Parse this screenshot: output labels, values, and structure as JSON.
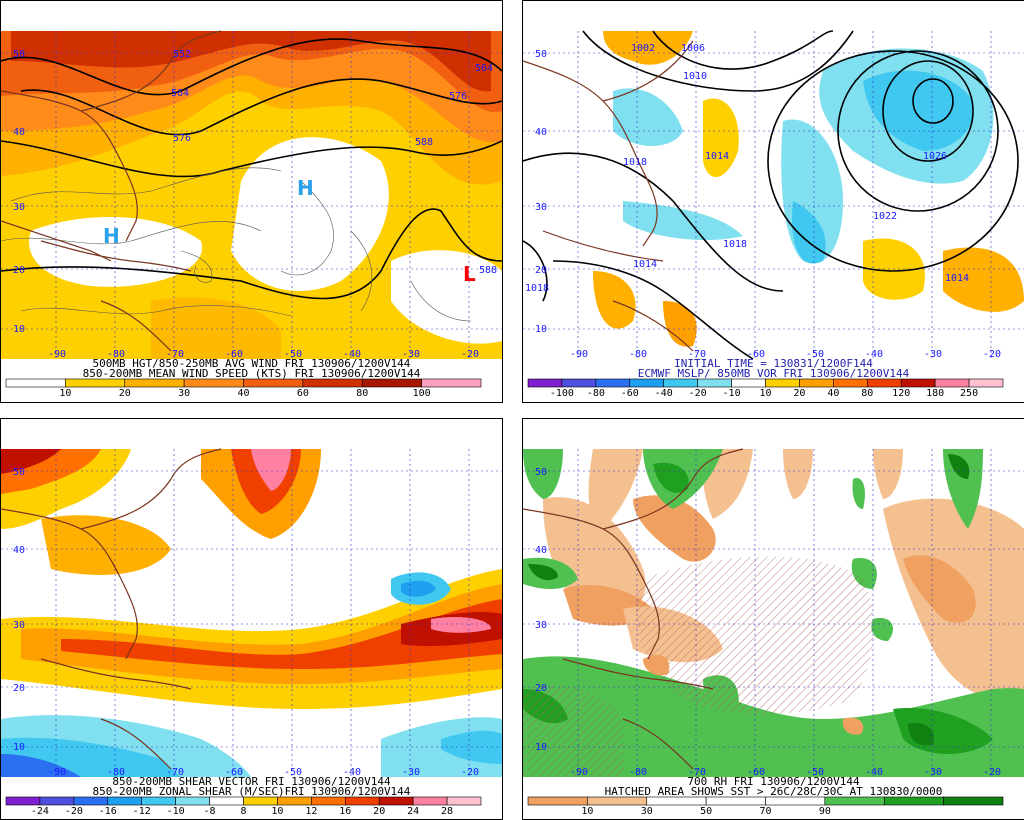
{
  "panels": [
    {
      "id": "p1",
      "captions": [
        "500MB HGT/850-250MB AVG WIND FRI 130906/1200V144",
        "850-200MB MEAN WIND SPEED (KTS) FRI 130906/1200V144"
      ],
      "colorbar": {
        "colors": [
          "#ffffff",
          "#ffd000",
          "#ffb000",
          "#ff8c1a",
          "#f06010",
          "#d03000",
          "#a81800",
          "#ffa0c0"
        ],
        "labels": [
          "10",
          "20",
          "30",
          "40",
          "60",
          "80",
          "100"
        ]
      },
      "contour_labels": [
        "552",
        "564",
        "564",
        "576",
        "576",
        "588",
        "588"
      ],
      "markers": [
        {
          "text": "H",
          "color": "#2aa0e8"
        },
        {
          "text": "H",
          "color": "#2aa0e8"
        },
        {
          "text": "L",
          "color": "#ff0000"
        }
      ]
    },
    {
      "id": "p2",
      "captions": [
        "INITIAL TIME = 130831/1200F144",
        "ECMWF MSLP/ 850MB VOR FRI 130906/1200V144"
      ],
      "colorbar": {
        "colors": [
          "#8020d0",
          "#5050e0",
          "#2a70f0",
          "#1ea0f0",
          "#40c8f0",
          "#80e0f0",
          "#ffffff",
          "#ffd000",
          "#ffa000",
          "#ff7000",
          "#f04000",
          "#c01000",
          "#ff80a0",
          "#ffc0d0"
        ],
        "labels": [
          "-100",
          "-80",
          "-60",
          "-40",
          "-20",
          "-10",
          "10",
          "20",
          "40",
          "80",
          "120",
          "180",
          "250"
        ]
      },
      "contour_labels": [
        "1002",
        "1006",
        "1010",
        "1014",
        "1014",
        "1018",
        "1018",
        "1014",
        "1022",
        "1026",
        "1014",
        "1018"
      ]
    },
    {
      "id": "p3",
      "captions": [
        "850-200MB SHEAR VECTOR FRI 130906/1200V144",
        "850-200MB ZONAL SHEAR (M/SEC)FRI 130906/1200V144"
      ],
      "colorbar": {
        "colors": [
          "#8020d0",
          "#5050e0",
          "#2a70f0",
          "#1ea0f0",
          "#40c8f0",
          "#80e0f0",
          "#ffffff",
          "#ffd000",
          "#ffa000",
          "#ff7000",
          "#f04000",
          "#c01000",
          "#ff80a0",
          "#ffc0d0"
        ],
        "labels": [
          "-24",
          "-20",
          "-16",
          "-12",
          "-10",
          "-8",
          "8",
          "10",
          "12",
          "16",
          "20",
          "24",
          "28"
        ]
      }
    },
    {
      "id": "p4",
      "captions": [
        "700 RH FRI 130906/1200V144",
        "HATCHED AREA SHOWS SST > 26C/28C/30C AT 130830/0000"
      ],
      "colorbar": {
        "colors": [
          "#f0a060",
          "#f5c090",
          "#ffffff",
          "#ffffff",
          "#ffffff",
          "#50c050",
          "#20a020",
          "#108010"
        ],
        "labels": [
          "10",
          "30",
          "50",
          "70",
          "90"
        ]
      }
    }
  ],
  "lon_labels": [
    "-90",
    "-80",
    "-70",
    "-60",
    "-50",
    "-40",
    "-30",
    "-20"
  ],
  "lat_labels": [
    "50",
    "40",
    "30",
    "20",
    "10"
  ]
}
